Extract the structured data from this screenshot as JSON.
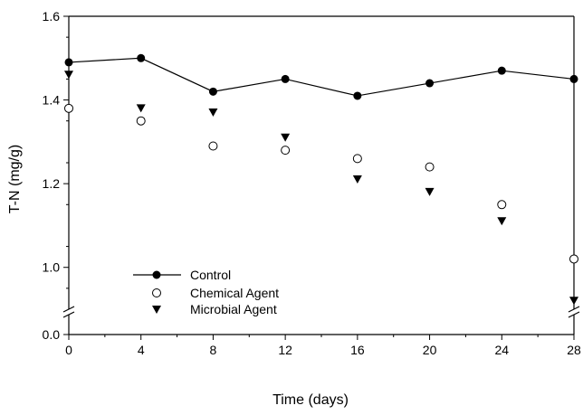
{
  "chart_data": {
    "type": "line",
    "xlabel": "Time (days)",
    "ylabel": "T-N (mg/g)",
    "xlim": [
      0,
      28
    ],
    "x_ticks": [
      "0",
      "4",
      "8",
      "12",
      "16",
      "20",
      "24",
      "28"
    ],
    "x_tick_values": [
      0,
      4,
      8,
      12,
      16,
      20,
      24,
      28
    ],
    "y_ticks": [
      "0.0",
      "1.0",
      "1.2",
      "1.4",
      "1.6"
    ],
    "y_tick_values": [
      0.0,
      1.0,
      1.2,
      1.4,
      1.6
    ],
    "y_axis_break": true,
    "y_segments": {
      "lower": [
        0.0,
        0.1
      ],
      "upper": [
        0.9,
        1.6
      ]
    },
    "grid": false,
    "legend_position": "bottom-left",
    "x": [
      0,
      4,
      8,
      12,
      16,
      20,
      24,
      28
    ],
    "series": [
      {
        "name": "Control",
        "marker": "filled-circle",
        "line": true,
        "color": "#000000",
        "values": [
          1.49,
          1.5,
          1.42,
          1.45,
          1.41,
          1.44,
          1.47,
          1.45
        ]
      },
      {
        "name": "Chemical Agent",
        "marker": "open-circle",
        "line": false,
        "color": "#000000",
        "values": [
          1.38,
          1.35,
          1.29,
          1.28,
          1.26,
          1.24,
          1.15,
          1.02
        ]
      },
      {
        "name": "Microbial Agent",
        "marker": "filled-triangle-down",
        "line": false,
        "color": "#000000",
        "values": [
          1.46,
          1.38,
          1.37,
          1.31,
          1.21,
          1.18,
          1.11,
          0.92
        ]
      }
    ]
  }
}
